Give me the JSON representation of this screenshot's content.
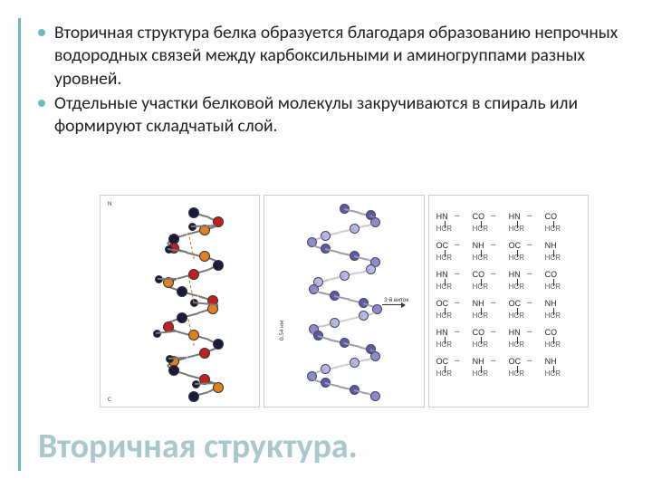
{
  "accent_color": "#6fb9bf",
  "title_color": "#a9c8cc",
  "bg_color": "#fdfdfd",
  "bullets": [
    "Вторичная структура белка образуется благодаря образованию непрочных водородных связей между карбоксильными и аминогруппами разных уровней.",
    "Отдельные участки белковой молекулы закручиваются в спираль или формируют складчатый слой."
  ],
  "title": "Вторичная структура.",
  "fig_colors": {
    "dark": "#1a1a3a",
    "blue": "#5a68b0",
    "red": "#c02020",
    "orange": "#e08020",
    "hbond": "#b08000",
    "helix_light": "#b8b8e8",
    "helix_mid": "#8a8ad0",
    "helix_dark": "#5a5aa8"
  },
  "fig3_rows": [
    [
      "HN",
      "CO",
      "HN",
      "CO"
    ],
    [
      "OC",
      "NH",
      "OC",
      "NH"
    ],
    [
      "HN",
      "CO",
      "HN",
      "CO"
    ],
    [
      "OC",
      "NH",
      "OC",
      "NH"
    ],
    [
      "HN",
      "CO",
      "HN",
      "CO"
    ],
    [
      "OC",
      "NH",
      "OC",
      "NH"
    ]
  ],
  "fig2_labels": {
    "turn": "3-й виток",
    "step": "0.54 нм"
  }
}
